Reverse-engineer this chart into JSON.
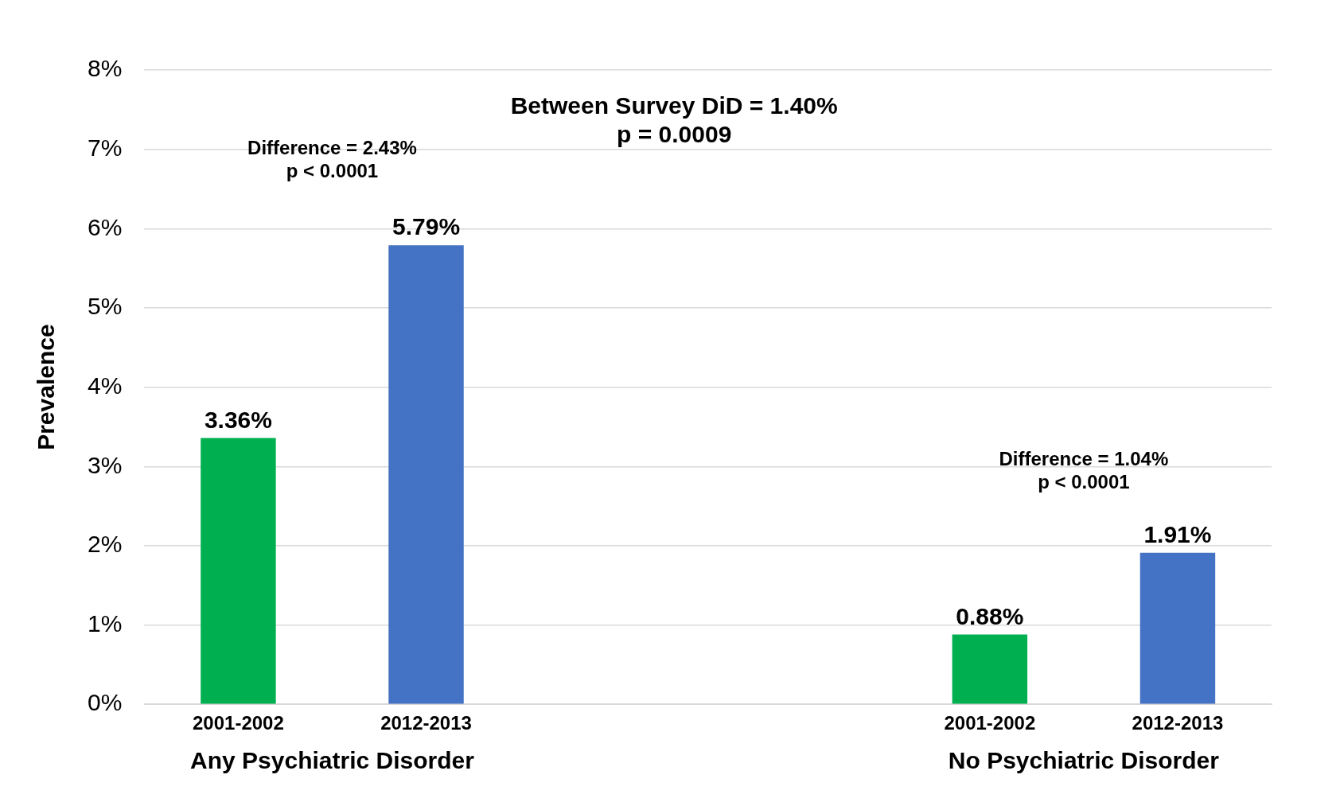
{
  "chart_data": {
    "type": "bar",
    "ylabel": "Prevalence",
    "categories": [
      "2001-2002",
      "2012-2013",
      null,
      null,
      "2001-2002",
      "2012-2013"
    ],
    "values": [
      3.36,
      5.79,
      null,
      null,
      0.88,
      1.91
    ],
    "colors": [
      "#00b050",
      "#4472c4",
      "#4472c4",
      "#4472c4",
      "#00b050",
      "#4472c4"
    ],
    "value_labels": [
      "3.36%",
      "5.79%",
      null,
      null,
      "0.88%",
      "1.91%"
    ],
    "ylim": [
      0,
      8
    ],
    "yticks": [
      {
        "value": 0,
        "label": "0%"
      },
      {
        "value": 1,
        "label": "1%"
      },
      {
        "value": 2,
        "label": "2%"
      },
      {
        "value": 3,
        "label": "3%"
      },
      {
        "value": 4,
        "label": "4%"
      },
      {
        "value": 5,
        "label": "5%"
      },
      {
        "value": 6,
        "label": "6%"
      },
      {
        "value": 7,
        "label": "7%"
      },
      {
        "value": 8,
        "label": "8%"
      }
    ],
    "grid": "y",
    "legend": false,
    "annotations": [
      "Any Psychiatric Disorder",
      "No Psychiatric Disorder",
      "Between Survey DiD = 1.40%\np = 0.0009",
      "Difference = 2.43%\np < 0.0001",
      "Difference = 1.04%\np < 0.0001"
    ]
  }
}
